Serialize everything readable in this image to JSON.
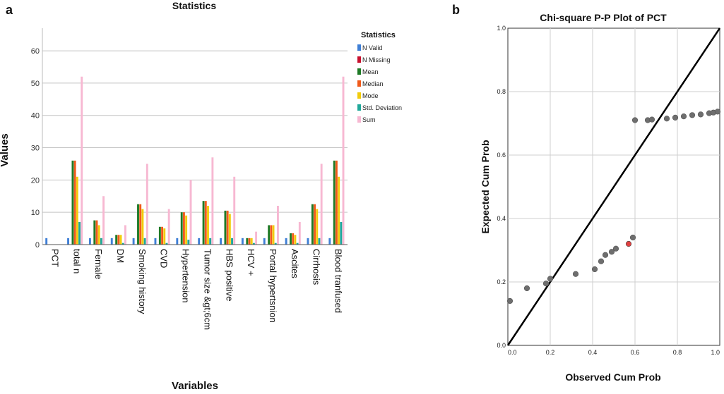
{
  "panels": {
    "a": "a",
    "b": "b"
  },
  "chart_data": [
    {
      "type": "bar",
      "title": "Statistics",
      "xlabel": "Variables",
      "ylabel": "Values",
      "ylim": [
        0,
        67
      ],
      "yticks": [
        0,
        10,
        20,
        30,
        40,
        50,
        60
      ],
      "grid": true,
      "legend_placement": "right",
      "legend_title": "Statistics",
      "categories": [
        "PCT",
        "total n",
        "Female",
        "DM",
        "Smoking history",
        "CVD",
        "Hypertension",
        "Tumor size &gt;6cm",
        "HBS positive",
        "HCV +",
        "Portal hypertsnion",
        "Ascites",
        "Cirrhosis",
        "Blood tranfused"
      ],
      "series": [
        {
          "name": "N Valid",
          "color": "#3f7fd6",
          "values": [
            2,
            2,
            2,
            2,
            2,
            2,
            2,
            2,
            2,
            2,
            2,
            2,
            2,
            2
          ]
        },
        {
          "name": "N Missing",
          "color": "#c8102e",
          "values": [
            0,
            0,
            0,
            0,
            0,
            0,
            0,
            0,
            0,
            0,
            0,
            0,
            0,
            0
          ]
        },
        {
          "name": "Mean",
          "color": "#1e7a26",
          "values": [
            0,
            26,
            7.5,
            3,
            12.5,
            5.5,
            10,
            13.5,
            10.5,
            2,
            6,
            3.5,
            12.5,
            26
          ]
        },
        {
          "name": "Median",
          "color": "#f05a1a",
          "values": [
            0,
            26,
            7.5,
            3,
            12.5,
            5.5,
            10,
            13.5,
            10.5,
            2,
            6,
            3.5,
            12.5,
            26
          ]
        },
        {
          "name": "Mode",
          "color": "#f2cc0c",
          "values": [
            0,
            21,
            6,
            3,
            11,
            5,
            9,
            12,
            9.5,
            2,
            6,
            3,
            11,
            21
          ]
        },
        {
          "name": "Std. Deviation",
          "color": "#20a89a",
          "values": [
            0,
            7,
            2,
            0.5,
            2,
            0.5,
            1.5,
            2,
            2,
            0.5,
            0.5,
            0.5,
            2,
            7
          ]
        },
        {
          "name": "Sum",
          "color": "#f7b8d2",
          "values": [
            0,
            52,
            15,
            6,
            25,
            11,
            20,
            27,
            21,
            4,
            12,
            7,
            25,
            52
          ]
        }
      ]
    },
    {
      "type": "scatter",
      "title": "Chi-square P-P Plot of PCT",
      "xlabel": "Observed Cum Prob",
      "ylabel": "Expected Cum Prob",
      "xlim": [
        0,
        1
      ],
      "ylim": [
        0,
        1
      ],
      "xticks": [
        0.0,
        0.2,
        0.4,
        0.6,
        0.8,
        1.0
      ],
      "yticks": [
        0.0,
        0.2,
        0.4,
        0.6,
        0.8,
        1.0
      ],
      "tick_labels": [
        "0.0",
        "0.2",
        "0.4",
        "0.6",
        "0.8",
        "1.0"
      ],
      "grid": true,
      "reference_line": [
        [
          0,
          0
        ],
        [
          1,
          1
        ]
      ],
      "point_color": "#6e6e6e",
      "highlight_color": "#e04040",
      "x": [
        0.01,
        0.09,
        0.18,
        0.2,
        0.32,
        0.41,
        0.44,
        0.46,
        0.49,
        0.51,
        0.57,
        0.59,
        0.6,
        0.66,
        0.68,
        0.75,
        0.79,
        0.83,
        0.87,
        0.91,
        0.95,
        0.97,
        0.99
      ],
      "y": [
        0.14,
        0.18,
        0.195,
        0.21,
        0.225,
        0.24,
        0.265,
        0.285,
        0.295,
        0.305,
        0.32,
        0.34,
        0.71,
        0.71,
        0.712,
        0.715,
        0.718,
        0.722,
        0.726,
        0.728,
        0.732,
        0.734,
        0.737
      ],
      "highlight_index": 10
    }
  ]
}
